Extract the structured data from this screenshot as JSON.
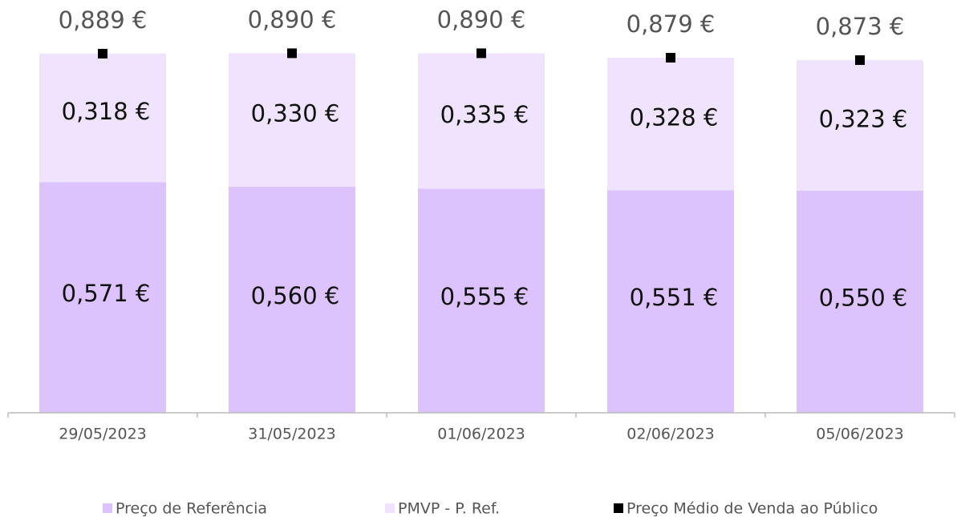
{
  "chart_data": {
    "type": "bar",
    "stacked": true,
    "categories": [
      "29/05/2023",
      "31/05/2023",
      "01/06/2023",
      "02/06/2023",
      "05/06/2023"
    ],
    "ylim": [
      0,
      1
    ],
    "series": [
      {
        "name": "Preço de Referência",
        "color": "#dcc3fd",
        "values": [
          0.571,
          0.56,
          0.555,
          0.551,
          0.55
        ],
        "value_labels": [
          "0,571 €",
          "0,560 €",
          "0,555 €",
          "0,551 €",
          "0,550 €"
        ]
      },
      {
        "name": "PMVP - P. Ref.",
        "color": "#efe3fe",
        "values": [
          0.318,
          0.33,
          0.335,
          0.328,
          0.323
        ],
        "value_labels": [
          "0,318 €",
          "0,330 €",
          "0,335 €",
          "0,328 €",
          "0,323 €"
        ]
      },
      {
        "name": "Preço Médio de Venda ao Público",
        "type": "scatter",
        "color": "#000000",
        "values": [
          0.889,
          0.89,
          0.89,
          0.879,
          0.873
        ],
        "value_labels": [
          "0,889 €",
          "0,890 €",
          "0,890 €",
          "0,879 €",
          "0,873 €"
        ]
      }
    ]
  }
}
